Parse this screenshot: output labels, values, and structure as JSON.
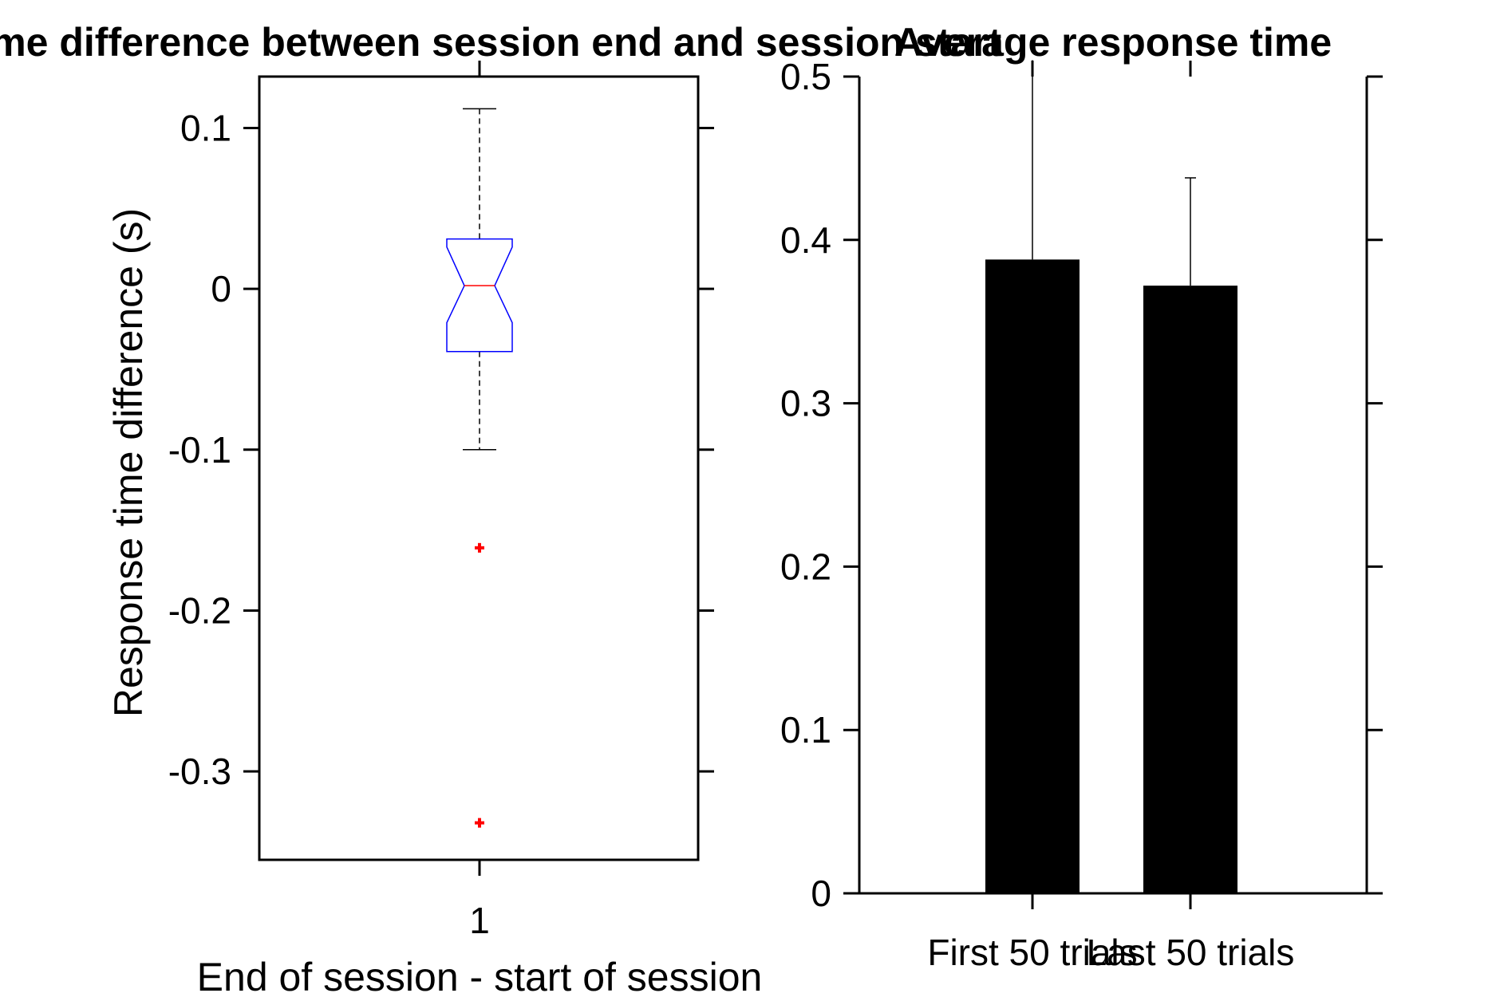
{
  "chart_data": [
    {
      "type": "box",
      "title": "Time difference between session end and session start",
      "xlabel": "End of session - start of session",
      "ylabel": "Response time difference (s)",
      "categories": [
        "1"
      ],
      "ylim": [
        -0.355,
        0.132
      ],
      "yticks": [
        {
          "value": 0.1,
          "label": "0.1"
        },
        {
          "value": 0,
          "label": "0"
        },
        {
          "value": -0.1,
          "label": "-0.1"
        },
        {
          "value": -0.2,
          "label": "-0.2"
        },
        {
          "value": -0.3,
          "label": "-0.3"
        }
      ],
      "box": {
        "median": 0.002,
        "q1": -0.039,
        "q3": 0.031,
        "notch_low": -0.021,
        "notch_high": 0.026,
        "whisker_low": -0.1,
        "whisker_high": 0.112,
        "outliers": [
          -0.161,
          -0.332
        ]
      },
      "grid": false,
      "colors": {
        "box": "#0000ff",
        "median": "#ff0000",
        "outlier": "#ff0000",
        "whisker": "#000000"
      }
    },
    {
      "type": "bar",
      "title": "Average response time",
      "categories": [
        "First 50 trials",
        "Last 50 trials"
      ],
      "values": [
        0.388,
        0.372
      ],
      "errors": [
        0.122,
        0.066
      ],
      "ylim": [
        0,
        0.5
      ],
      "yticks": [
        {
          "value": 0,
          "label": "0"
        },
        {
          "value": 0.1,
          "label": "0.1"
        },
        {
          "value": 0.2,
          "label": "0.2"
        },
        {
          "value": 0.3,
          "label": "0.3"
        },
        {
          "value": 0.4,
          "label": "0.4"
        },
        {
          "value": 0.5,
          "label": "0.5"
        }
      ],
      "grid": false,
      "colors": {
        "bar": "#000000",
        "errorbar": "#000000"
      }
    }
  ]
}
